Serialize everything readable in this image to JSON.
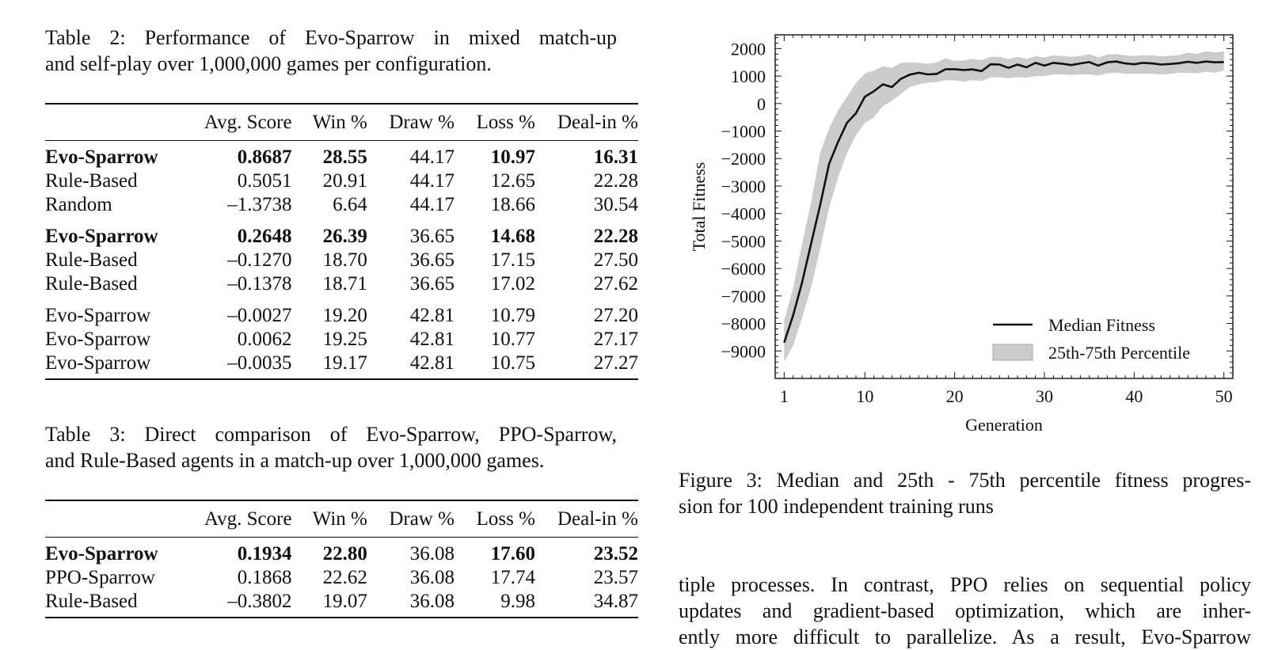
{
  "table2": {
    "caption": "Table 2: Performance of Evo-Sparrow in mixed match-up and self-play over 1,000,000 games per configuration.",
    "caption_lines": [
      "Table 2: Performance of Evo-Sparrow in mixed match-up",
      "and self-play over 1,000,000 games per configuration."
    ],
    "headers": [
      "",
      "Avg. Score",
      "Win %",
      "Draw %",
      "Loss %",
      "Deal-in %"
    ],
    "groups": [
      [
        {
          "name": "Evo-Sparrow",
          "avg": "0.8687",
          "win": "28.55",
          "draw": "44.17",
          "loss": "10.97",
          "dealin": "16.31",
          "bold": [
            true,
            true,
            true,
            false,
            true,
            true
          ]
        },
        {
          "name": "Rule-Based",
          "avg": "0.5051",
          "win": "20.91",
          "draw": "44.17",
          "loss": "12.65",
          "dealin": "22.28",
          "bold": [
            false,
            false,
            false,
            false,
            false,
            false
          ]
        },
        {
          "name": "Random",
          "avg": "–1.3738",
          "win": "6.64",
          "draw": "44.17",
          "loss": "18.66",
          "dealin": "30.54",
          "bold": [
            false,
            false,
            false,
            false,
            false,
            false
          ]
        }
      ],
      [
        {
          "name": "Evo-Sparrow",
          "avg": "0.2648",
          "win": "26.39",
          "draw": "36.65",
          "loss": "14.68",
          "dealin": "22.28",
          "bold": [
            true,
            true,
            true,
            false,
            true,
            true
          ]
        },
        {
          "name": "Rule-Based",
          "avg": "–0.1270",
          "win": "18.70",
          "draw": "36.65",
          "loss": "17.15",
          "dealin": "27.50",
          "bold": [
            false,
            false,
            false,
            false,
            false,
            false
          ]
        },
        {
          "name": "Rule-Based",
          "avg": "–0.1378",
          "win": "18.71",
          "draw": "36.65",
          "loss": "17.02",
          "dealin": "27.62",
          "bold": [
            false,
            false,
            false,
            false,
            false,
            false
          ]
        }
      ],
      [
        {
          "name": "Evo-Sparrow",
          "avg": "–0.0027",
          "win": "19.20",
          "draw": "42.81",
          "loss": "10.79",
          "dealin": "27.20",
          "bold": [
            false,
            false,
            false,
            false,
            false,
            false
          ]
        },
        {
          "name": "Evo-Sparrow",
          "avg": "0.0062",
          "win": "19.25",
          "draw": "42.81",
          "loss": "10.77",
          "dealin": "27.17",
          "bold": [
            false,
            false,
            false,
            false,
            false,
            false
          ]
        },
        {
          "name": "Evo-Sparrow",
          "avg": "–0.0035",
          "win": "19.17",
          "draw": "42.81",
          "loss": "10.75",
          "dealin": "27.27",
          "bold": [
            false,
            false,
            false,
            false,
            false,
            false
          ]
        }
      ]
    ]
  },
  "table3": {
    "caption": "Table 3: Direct comparison of Evo-Sparrow, PPO-Sparrow, and Rule-Based agents in a match-up over 1,000,000 games.",
    "caption_lines": [
      "Table 3: Direct comparison of Evo-Sparrow, PPO-Sparrow,",
      "and Rule-Based agents in a match-up over 1,000,000 games."
    ],
    "headers": [
      "",
      "Avg. Score",
      "Win %",
      "Draw %",
      "Loss %",
      "Deal-in %"
    ],
    "groups": [
      [
        {
          "name": "Evo-Sparrow",
          "avg": "0.1934",
          "win": "22.80",
          "draw": "36.08",
          "loss": "17.60",
          "dealin": "23.52",
          "bold": [
            true,
            true,
            true,
            false,
            true,
            true
          ]
        },
        {
          "name": "PPO-Sparrow",
          "avg": "0.1868",
          "win": "22.62",
          "draw": "36.08",
          "loss": "17.74",
          "dealin": "23.57",
          "bold": [
            false,
            false,
            false,
            false,
            false,
            false
          ]
        },
        {
          "name": "Rule-Based",
          "avg": "–0.3802",
          "win": "19.07",
          "draw": "36.08",
          "loss": "9.98",
          "dealin": "34.87",
          "bold": [
            false,
            false,
            false,
            false,
            false,
            false
          ]
        }
      ]
    ]
  },
  "figure": {
    "caption": "Figure 3: Median and 25th - 75th percentile fitness progression for 100 independent training runs",
    "caption_lines": [
      "Figure 3: Median and 25th - 75th percentile fitness progres-",
      "sion for 100 independent training runs"
    ]
  },
  "body_text": {
    "lines": [
      "tiple processes. In contrast, PPO relies on sequential policy",
      "updates and gradient-based optimization, which are inher-",
      "ently more difficult to parallelize. As a result, Evo-Sparrow"
    ]
  },
  "chart_data": {
    "type": "line",
    "xlabel": "Generation",
    "ylabel": "Total Fitness",
    "xlim": [
      0,
      51
    ],
    "ylim": [
      -10000,
      2500
    ],
    "xticks": [
      1,
      10,
      20,
      30,
      40,
      50
    ],
    "yticks": [
      2000,
      1000,
      0,
      -1000,
      -2000,
      -3000,
      -4000,
      -5000,
      -6000,
      -7000,
      -8000,
      -9000
    ],
    "ytick_labels": [
      "2000",
      "1000",
      "0",
      "−1000",
      "−2000",
      "−3000",
      "−4000",
      "−5000",
      "−6000",
      "−7000",
      "−8000",
      "−9000"
    ],
    "legend_position": "bottom-right",
    "series": [
      {
        "name": "Median Fitness",
        "color": "#111111",
        "x": [
          1,
          2,
          3,
          4,
          5,
          6,
          7,
          8,
          9,
          10,
          11,
          12,
          13,
          14,
          15,
          16,
          17,
          18,
          19,
          20,
          21,
          22,
          23,
          24,
          25,
          26,
          27,
          28,
          29,
          30,
          31,
          32,
          33,
          34,
          35,
          36,
          37,
          38,
          39,
          40,
          41,
          42,
          43,
          44,
          45,
          46,
          47,
          48,
          49,
          50
        ],
        "values": [
          -8700,
          -7700,
          -6500,
          -5100,
          -3700,
          -2200,
          -1400,
          -700,
          -350,
          250,
          450,
          700,
          600,
          900,
          1050,
          1120,
          1060,
          1080,
          1250,
          1250,
          1220,
          1240,
          1180,
          1430,
          1420,
          1300,
          1420,
          1320,
          1480,
          1380,
          1480,
          1450,
          1400,
          1460,
          1510,
          1380,
          1500,
          1530,
          1460,
          1430,
          1480,
          1460,
          1420,
          1440,
          1470,
          1520,
          1480,
          1530,
          1500,
          1510
        ]
      },
      {
        "name": "25th-75th Percentile",
        "color": "#cccccc",
        "x": [
          1,
          2,
          3,
          4,
          5,
          6,
          7,
          8,
          9,
          10,
          11,
          12,
          13,
          14,
          15,
          16,
          17,
          18,
          19,
          20,
          21,
          22,
          23,
          24,
          25,
          26,
          27,
          28,
          29,
          30,
          31,
          32,
          33,
          34,
          35,
          36,
          37,
          38,
          39,
          40,
          41,
          42,
          43,
          44,
          45,
          46,
          47,
          48,
          49,
          50
        ],
        "lower": [
          -9400,
          -8800,
          -7800,
          -6700,
          -5300,
          -3800,
          -2700,
          -1800,
          -1150,
          -700,
          -500,
          -100,
          100,
          350,
          600,
          700,
          760,
          780,
          850,
          840,
          800,
          850,
          820,
          950,
          960,
          920,
          960,
          940,
          1000,
          1000,
          1050,
          1060,
          1040,
          1060,
          1060,
          1020,
          1100,
          1120,
          1080,
          1080,
          1090,
          1080,
          1060,
          1080,
          1120,
          1120,
          1100,
          1160,
          1120,
          1200
        ],
        "upper": [
          -7900,
          -6700,
          -5100,
          -3600,
          -1800,
          -900,
          -250,
          250,
          750,
          1100,
          1200,
          1350,
          1300,
          1480,
          1500,
          1480,
          1450,
          1500,
          1650,
          1550,
          1570,
          1620,
          1580,
          1700,
          1700,
          1620,
          1700,
          1630,
          1720,
          1680,
          1750,
          1730,
          1700,
          1730,
          1800,
          1680,
          1780,
          1800,
          1750,
          1730,
          1760,
          1750,
          1720,
          1740,
          1760,
          1850,
          1800,
          1900,
          1860,
          1900
        ]
      }
    ]
  }
}
